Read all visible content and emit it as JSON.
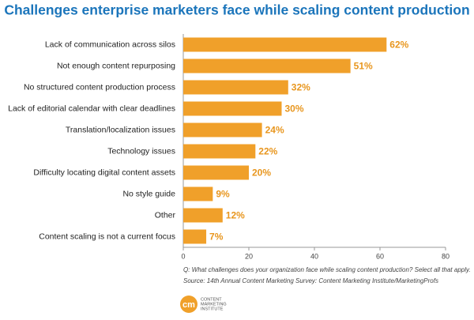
{
  "chart_data": {
    "type": "barh",
    "title": "Challenges enterprise marketers face while scaling content production",
    "categories": [
      "Lack of communication across silos",
      "Not enough content repurposing",
      "No structured content production process",
      "Lack of editorial calendar with clear deadlines",
      "Translation/localization issues",
      "Technology issues",
      "Difficulty locating digital content assets",
      "No style guide",
      "Other",
      "Content scaling is not a current focus"
    ],
    "values": [
      62,
      51,
      32,
      30,
      24,
      22,
      20,
      9,
      12,
      7
    ],
    "value_labels": [
      "62%",
      "51%",
      "32%",
      "30%",
      "24%",
      "22%",
      "20%",
      "9%",
      "12%",
      "7%"
    ],
    "color": "#f0a02a",
    "xlim": [
      0,
      80
    ],
    "xticks": [
      0,
      20,
      40,
      60,
      80
    ],
    "note": "Q: What challenges does your organization face while scaling content production? Select all that apply.",
    "source": "Source: 14th Annual Content Marketing Survey: Content Marketing Institute/MarketingProfs"
  },
  "logo": {
    "mark": "cm",
    "lines": [
      "CONTENT",
      "MARKETING",
      "INSTITUTE"
    ]
  }
}
